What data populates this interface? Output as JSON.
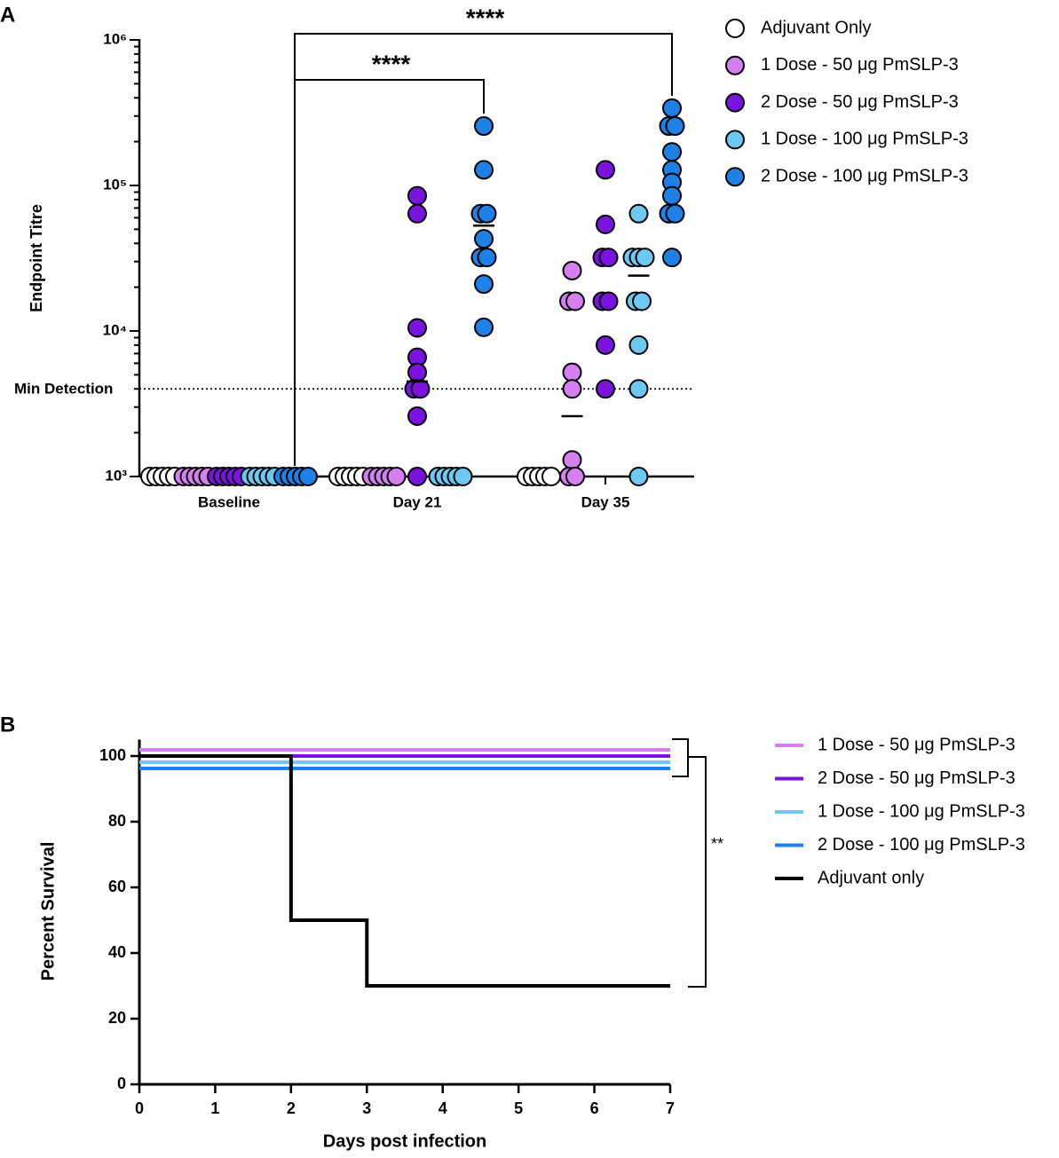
{
  "chart_data": [
    {
      "type": "strip",
      "panel": "A",
      "ylabel": "Endpoint Titre",
      "log": true,
      "ylim": [
        1000,
        1000000
      ],
      "yticks": [
        {
          "value": 1000,
          "label": "10³"
        },
        {
          "value": 10000,
          "label": "10⁴"
        },
        {
          "value": 100000,
          "label": "10⁵"
        },
        {
          "value": 1000000,
          "label": "10⁶"
        }
      ],
      "categories": [
        "Baseline",
        "Day 21",
        "Day 35"
      ],
      "reference_line": {
        "label": "Min Detection",
        "value": 4000
      },
      "significance": [
        "****",
        "****"
      ],
      "series": [
        {
          "name": "Adjuvant Only",
          "color": "#ffffff",
          "values": [
            [
              1000,
              1000,
              1000,
              1000,
              1000
            ],
            [
              1000,
              1000,
              1000,
              1000,
              1000
            ],
            [
              1000,
              1000,
              1000,
              1000,
              1000
            ]
          ],
          "means": [
            null,
            null,
            null
          ]
        },
        {
          "name": "1 Dose - 50 μg PmSLP-3",
          "color": "#d57ff0",
          "values": [
            [
              1000,
              1000,
              1000,
              1000,
              1000
            ],
            [
              1000,
              1000,
              1000,
              1000,
              1000
            ],
            [
              26000,
              16000,
              16000,
              5200,
              4000,
              1300,
              1000,
              1000
            ]
          ],
          "means": [
            null,
            null,
            2600
          ]
        },
        {
          "name": "2 Dose - 50 μg PmSLP-3",
          "color": "#7a12e0",
          "values": [
            [
              1000,
              1000,
              1000,
              1000,
              1000
            ],
            [
              85000,
              64000,
              10500,
              6600,
              5200,
              4000,
              4000,
              2600,
              1000
            ],
            [
              128000,
              54000,
              32000,
              32000,
              16000,
              16000,
              8000,
              4000
            ]
          ],
          "means": [
            null,
            4500,
            null
          ]
        },
        {
          "name": "1 Dose - 100 μg PmSLP-3",
          "color": "#6cc9f2",
          "values": [
            [
              1000,
              1000,
              1000,
              1000,
              1000
            ],
            [
              1000,
              1000,
              1000,
              1000,
              1000
            ],
            [
              64000,
              32000,
              32000,
              32000,
              16000,
              16000,
              8000,
              4000,
              1000
            ]
          ],
          "means": [
            null,
            null,
            24000
          ]
        },
        {
          "name": "2 Dose - 100 μg PmSLP-3",
          "color": "#1f80e6",
          "values": [
            [
              1000,
              1000,
              1000,
              1000,
              1000
            ],
            [
              256000,
              128000,
              64000,
              64000,
              43000,
              32000,
              32000,
              21000,
              10600
            ],
            [
              340000,
              256000,
              256000,
              170000,
              128000,
              105000,
              85000,
              64000,
              64000,
              32000
            ]
          ],
          "means": [
            null,
            53000,
            null
          ]
        }
      ]
    },
    {
      "type": "survival",
      "panel": "B",
      "xlabel": "Days post infection",
      "ylabel": "Percent Survival",
      "xlim": [
        0,
        7
      ],
      "xticks": [
        0,
        1,
        2,
        3,
        4,
        5,
        6,
        7
      ],
      "ylim": [
        0,
        105
      ],
      "yticks": [
        0,
        20,
        40,
        60,
        80,
        100
      ],
      "significance": "**",
      "series": [
        {
          "name": "1 Dose - 50 μg PmSLP-3",
          "color": "#d57ff0",
          "x": [
            0,
            7
          ],
          "values": [
            100,
            100
          ]
        },
        {
          "name": "2 Dose - 50 μg PmSLP-3",
          "color": "#7a12e0",
          "x": [
            0,
            7
          ],
          "values": [
            100,
            100
          ]
        },
        {
          "name": "1 Dose - 100 μg PmSLP-3",
          "color": "#6cc9f2",
          "x": [
            0,
            7
          ],
          "values": [
            100,
            100
          ]
        },
        {
          "name": "2 Dose - 100 μg PmSLP-3",
          "color": "#1f80e6",
          "x": [
            0,
            7
          ],
          "values": [
            100,
            100
          ]
        },
        {
          "name": "Adjuvant only",
          "color": "#000000",
          "x": [
            0,
            2,
            3,
            7
          ],
          "values": [
            100,
            50,
            30,
            30
          ]
        }
      ]
    }
  ]
}
